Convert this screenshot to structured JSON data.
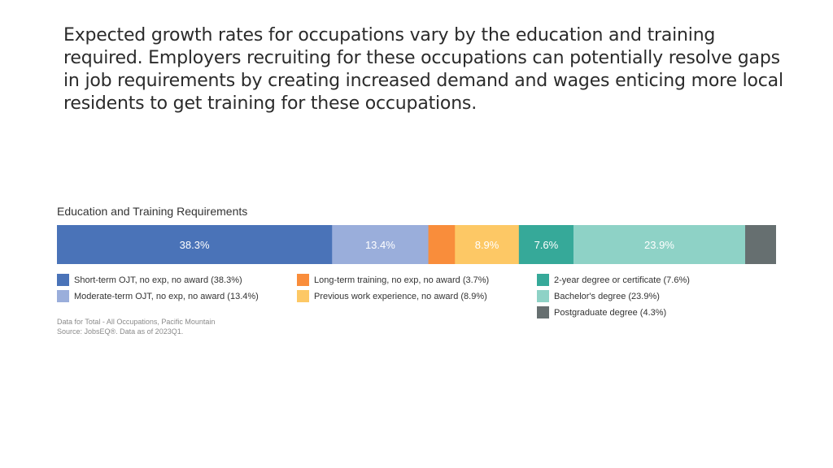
{
  "intro": "Expected growth rates for occupations vary by the education and training required. Employers recruiting for these occupations can potentially resolve gaps in job requirements by creating increased demand and wages enticing more local residents to get training for these occupations.",
  "chart_data": {
    "type": "bar",
    "orientation": "horizontal-stacked",
    "title": "Education and Training Requirements",
    "unit": "%",
    "series": [
      {
        "name": "Short-term OJT, no exp, no award",
        "value": 38.3,
        "label": "38.3%",
        "legend": "Short-term OJT, no exp, no award (38.3%)",
        "color": "#4a73b8"
      },
      {
        "name": "Moderate-term OJT, no exp, no award",
        "value": 13.4,
        "label": "13.4%",
        "legend": "Moderate-term OJT, no exp, no award (13.4%)",
        "color": "#9aaedb"
      },
      {
        "name": "Long-term training, no exp, no award",
        "value": 3.7,
        "label": "",
        "legend": "Long-term training, no exp, no award (3.7%)",
        "color": "#f98d3b"
      },
      {
        "name": "Previous work experience, no award",
        "value": 8.9,
        "label": "8.9%",
        "legend": "Previous work experience, no award (8.9%)",
        "color": "#fdc865"
      },
      {
        "name": "2-year degree or certificate",
        "value": 7.6,
        "label": "7.6%",
        "legend": "2-year degree or certificate (7.6%)",
        "color": "#36a999"
      },
      {
        "name": "Bachelor's degree",
        "value": 23.9,
        "label": "23.9%",
        "legend": "Bachelor's degree (23.9%)",
        "color": "#8ed2c6"
      },
      {
        "name": "Postgraduate degree",
        "value": 4.3,
        "label": "",
        "legend": "Postgraduate degree (4.3%)",
        "color": "#666f70"
      }
    ],
    "legend_position": "bottom",
    "grid": false
  },
  "footnote": {
    "line1": "Data for Total - All Occupations, Pacific Mountain",
    "line2": "Source: JobsEQ®. Data as of 2023Q1."
  }
}
